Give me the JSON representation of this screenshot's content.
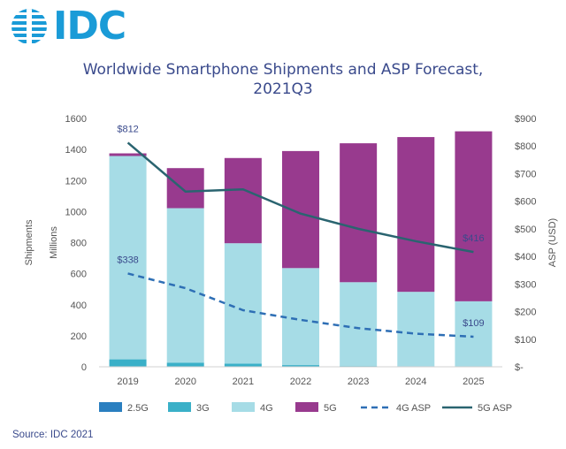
{
  "logo": {
    "text": "IDC"
  },
  "header": {
    "title_line1": "Worldwide Smartphone Shipments and ASP Forecast,",
    "title_line2": "2021Q3"
  },
  "source": "Source: IDC 2021",
  "colors": {
    "2.5G": "#2a7fc0",
    "3G": "#3ab0c8",
    "4G": "#a6dce6",
    "5G": "#983a8e",
    "4G ASP": "#2e6fb5",
    "5G ASP": "#2a6470"
  },
  "chart_data": {
    "type": "bar",
    "title": "Worldwide Smartphone Shipments and ASP Forecast, 2021Q3",
    "categories": [
      "2019",
      "2020",
      "2021",
      "2022",
      "2023",
      "2024",
      "2025"
    ],
    "ylabel_left": "Shipments",
    "ylabel_left_sub": "Millions",
    "ylabel_right": "ASP (USD)",
    "ylim_left": [
      0,
      1600
    ],
    "ylim_right": [
      0,
      900
    ],
    "yticks_left": [
      "0",
      "200",
      "400",
      "600",
      "800",
      "1000",
      "1200",
      "1400",
      "1600"
    ],
    "yticks_right": [
      "$-",
      "$100",
      "$200",
      "$300",
      "$400",
      "$500",
      "$600",
      "$700",
      "$800",
      "$900"
    ],
    "stacked": true,
    "series": [
      {
        "name": "2.5G",
        "values": [
          3,
          2,
          1,
          1,
          0,
          0,
          0
        ]
      },
      {
        "name": "3G",
        "values": [
          45,
          25,
          20,
          10,
          5,
          3,
          2
        ]
      },
      {
        "name": "4G",
        "values": [
          1310,
          995,
          775,
          625,
          540,
          480,
          420
        ]
      },
      {
        "name": "5G",
        "values": [
          17,
          258,
          549,
          754,
          895,
          997,
          1095
        ]
      }
    ],
    "lines": [
      {
        "name": "4G ASP",
        "axis": "right",
        "style": "dashed",
        "values": [
          338,
          285,
          205,
          170,
          140,
          120,
          109
        ]
      },
      {
        "name": "5G ASP",
        "axis": "right",
        "style": "solid",
        "values": [
          812,
          635,
          643,
          555,
          500,
          455,
          416
        ]
      }
    ],
    "annotations": [
      {
        "text": "$812",
        "series": "5G ASP",
        "category": "2019"
      },
      {
        "text": "$338",
        "series": "4G ASP",
        "category": "2019"
      },
      {
        "text": "$416",
        "series": "5G ASP",
        "category": "2025"
      },
      {
        "text": "$109",
        "series": "4G ASP",
        "category": "2025"
      }
    ],
    "legend": [
      "2.5G",
      "3G",
      "4G",
      "5G",
      "4G ASP",
      "5G ASP"
    ],
    "legend_position": "bottom",
    "grid": false
  }
}
